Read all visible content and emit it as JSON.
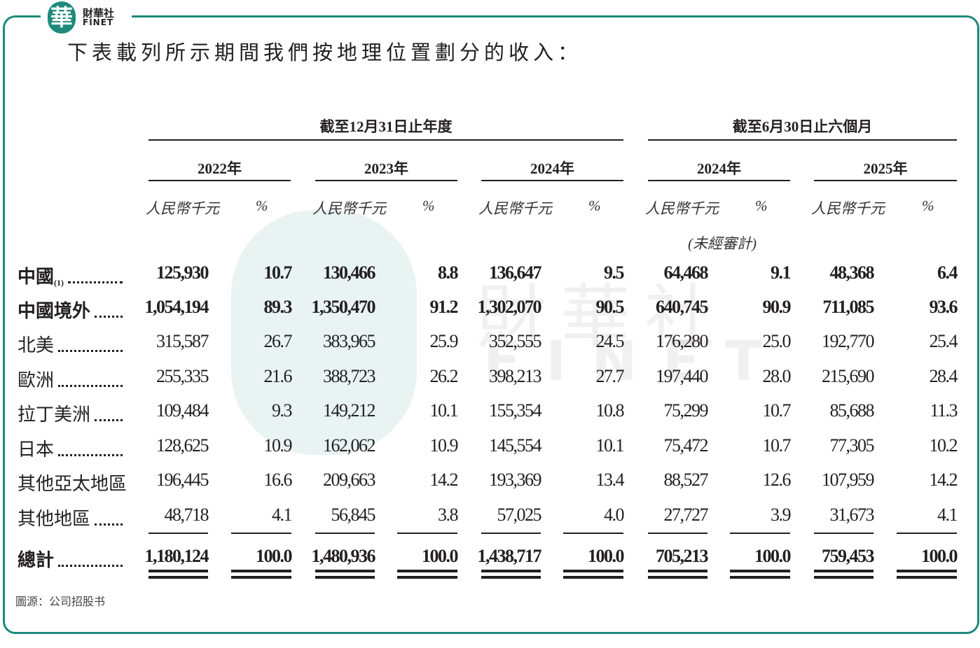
{
  "header": {
    "logo_char": "華",
    "logo_text": "財華社",
    "logo_sub": "FINET",
    "title": "下表載列所示期間我們按地理位置劃分的收入："
  },
  "table": {
    "group_headers": [
      "截至12月31日止年度",
      "截至6月30日止六個月"
    ],
    "years": [
      "2022年",
      "2023年",
      "2024年",
      "2024年",
      "2025年"
    ],
    "units": {
      "amount": "人民幣千元",
      "percent": "%"
    },
    "unaudited": "(未經審計)",
    "rows": [
      {
        "label": "中國",
        "note": "(1)",
        "bold": true,
        "cells": [
          "125,930",
          "10.7",
          "130,466",
          "8.8",
          "136,647",
          "9.5",
          "64,468",
          "9.1",
          "48,368",
          "6.4"
        ]
      },
      {
        "label": "中國境外",
        "bold": true,
        "cells": [
          "1,054,194",
          "89.3",
          "1,350,470",
          "91.2",
          "1,302,070",
          "90.5",
          "640,745",
          "90.9",
          "711,085",
          "93.6"
        ]
      },
      {
        "label": "北美",
        "bold": false,
        "cells": [
          "315,587",
          "26.7",
          "383,965",
          "25.9",
          "352,555",
          "24.5",
          "176,280",
          "25.0",
          "192,770",
          "25.4"
        ]
      },
      {
        "label": "歐洲",
        "bold": false,
        "cells": [
          "255,335",
          "21.6",
          "388,723",
          "26.2",
          "398,213",
          "27.7",
          "197,440",
          "28.0",
          "215,690",
          "28.4"
        ]
      },
      {
        "label": "拉丁美洲",
        "bold": false,
        "cells": [
          "109,484",
          "9.3",
          "149,212",
          "10.1",
          "155,354",
          "10.8",
          "75,299",
          "10.7",
          "85,688",
          "11.3"
        ]
      },
      {
        "label": "日本",
        "bold": false,
        "cells": [
          "128,625",
          "10.9",
          "162,062",
          "10.9",
          "145,554",
          "10.1",
          "75,472",
          "10.7",
          "77,305",
          "10.2"
        ]
      },
      {
        "label": "其他亞太地區",
        "bold": false,
        "cells": [
          "196,445",
          "16.6",
          "209,663",
          "14.2",
          "193,369",
          "13.4",
          "88,527",
          "12.6",
          "107,959",
          "14.2"
        ]
      },
      {
        "label": "其他地區",
        "bold": false,
        "cells": [
          "48,718",
          "4.1",
          "56,845",
          "3.8",
          "57,025",
          "4.0",
          "27,727",
          "3.9",
          "31,673",
          "4.1"
        ]
      },
      {
        "label": "總計",
        "bold": true,
        "total": true,
        "cells": [
          "1,180,124",
          "100.0",
          "1,480,936",
          "100.0",
          "1,438,717",
          "100.0",
          "705,213",
          "100.0",
          "759,453",
          "100.0"
        ]
      }
    ]
  },
  "watermark": {
    "text": "財華社",
    "sub": "FINET"
  },
  "source": "圖源：公司招股书"
}
